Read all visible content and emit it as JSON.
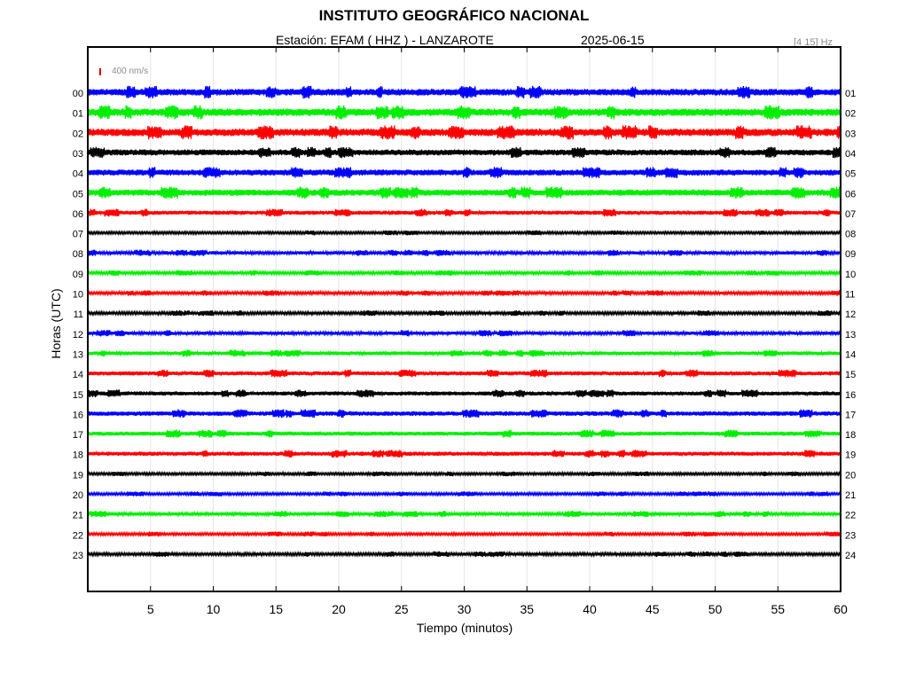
{
  "header": {
    "title": "INSTITUTO GEOGRÁFICO NACIONAL",
    "station_label": "Estación:  EFAM ( HHZ ) - LANZAROTE",
    "date": "2025-06-15",
    "filter": "[4 15] Hz",
    "scale": "400 nm/s"
  },
  "chart_data": {
    "type": "line",
    "title": "INSTITUTO GEOGRÁFICO NACIONAL",
    "subtitle": "Estación:  EFAM ( HHZ ) - LANZAROTE   2025-06-15",
    "xlabel": "Tiempo (minutos)",
    "ylabel": "Horas (UTC)",
    "xlim": [
      0,
      60
    ],
    "x_ticks": [
      5,
      10,
      15,
      20,
      25,
      30,
      35,
      40,
      45,
      50,
      55,
      60
    ],
    "y_ticks_left": [
      "00",
      "01",
      "02",
      "03",
      "04",
      "05",
      "06",
      "07",
      "08",
      "09",
      "10",
      "11",
      "12",
      "13",
      "14",
      "15",
      "16",
      "17",
      "18",
      "19",
      "20",
      "21",
      "22",
      "23"
    ],
    "y_ticks_right": [
      "01",
      "02",
      "03",
      "04",
      "05",
      "06",
      "07",
      "08",
      "09",
      "10",
      "11",
      "12",
      "13",
      "14",
      "15",
      "16",
      "17",
      "18",
      "19",
      "20",
      "21",
      "22",
      "23",
      "24"
    ],
    "grid": "vertical",
    "scale_bar": "400 nm/s",
    "series_colors": [
      "#0000ff",
      "#00ee00",
      "#ff0000",
      "#000000"
    ],
    "trace_amplitude_rel": [
      0.9,
      1.0,
      1.0,
      0.8,
      0.8,
      0.85,
      0.55,
      0.35,
      0.45,
      0.4,
      0.4,
      0.4,
      0.45,
      0.5,
      0.55,
      0.55,
      0.6,
      0.55,
      0.55,
      0.35,
      0.35,
      0.45,
      0.35,
      0.4
    ]
  }
}
